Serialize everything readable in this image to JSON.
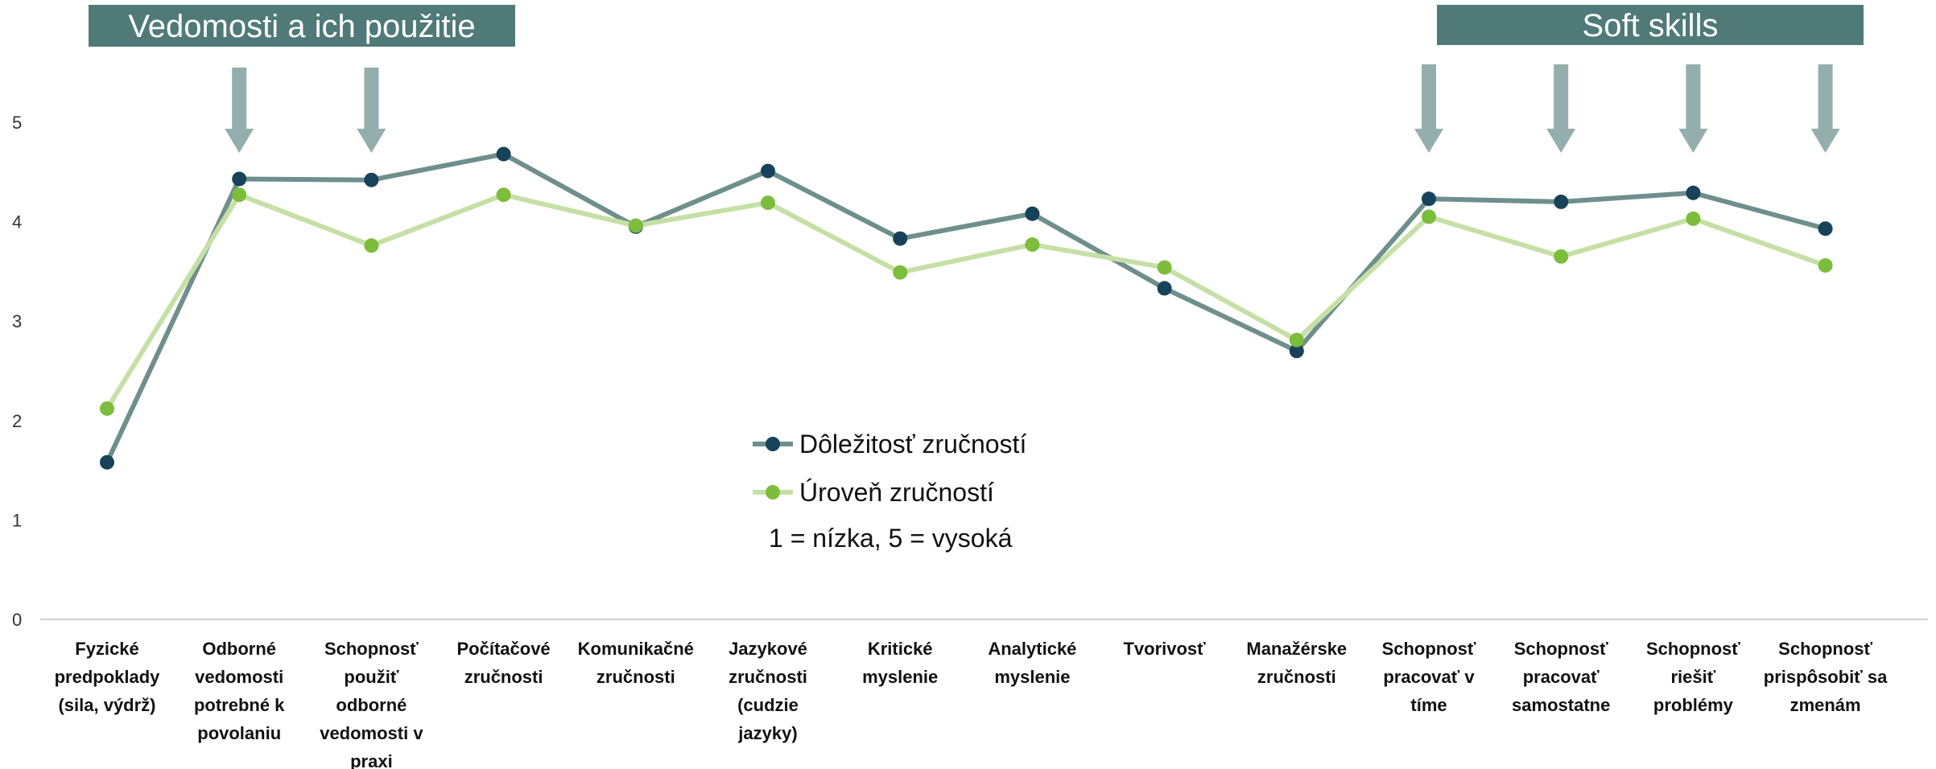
{
  "chart_data": {
    "type": "line",
    "title": "",
    "xlabel": "",
    "ylabel": "",
    "ylim": [
      0,
      5
    ],
    "yticks": [
      "0",
      "1",
      "2",
      "3",
      "4",
      "5"
    ],
    "grid": false,
    "legend_position": "center",
    "categories": [
      [
        "Fyzické",
        "predpoklady",
        "(sila, výdrž)"
      ],
      [
        "Odborné",
        "vedomosti",
        "potrebné k",
        "povolaniu"
      ],
      [
        "Schopnosť",
        "použiť",
        "odborné",
        "vedomosti v",
        "praxi"
      ],
      [
        "Počítačové",
        "zručnosti"
      ],
      [
        "Komunikačné",
        "zručnosti"
      ],
      [
        "Jazykové",
        "zručnosti",
        "(cudzie",
        "jazyky)"
      ],
      [
        "Kritické",
        "myslenie"
      ],
      [
        "Analytické",
        "myslenie"
      ],
      [
        "Tvorivosť"
      ],
      [
        "Manažérske",
        "zručnosti"
      ],
      [
        "Schopnosť",
        "pracovať v",
        "tíme"
      ],
      [
        "Schopnosť",
        "pracovať",
        "samostatne"
      ],
      [
        "Schopnosť",
        "riešiť",
        "problémy"
      ],
      [
        "Schopnosť",
        "prispôsobiť sa",
        "zmenám"
      ]
    ],
    "series": [
      {
        "name": "Dôležitosť zručností",
        "line_color": "#6f8f8d",
        "marker_color": "#17425a",
        "values": [
          1.58,
          4.43,
          4.42,
          4.68,
          3.95,
          4.51,
          3.83,
          4.08,
          3.33,
          2.7,
          4.23,
          4.2,
          4.29,
          3.93
        ]
      },
      {
        "name": "Úroveň zručností",
        "line_color": "#c5e0a5",
        "marker_color": "#7cbd3c",
        "values": [
          2.12,
          4.27,
          3.76,
          4.27,
          3.96,
          4.19,
          3.49,
          3.77,
          3.54,
          2.81,
          4.05,
          3.65,
          4.03,
          3.56
        ]
      }
    ],
    "annotations": {
      "scale_note": "1 = nízka, 5 = vysoká",
      "groups": [
        {
          "label": "Vedomosti a ich použitie",
          "arrow_category_indices": [
            1,
            2
          ]
        },
        {
          "label": "Soft skills",
          "arrow_category_indices": [
            10,
            11,
            12,
            13
          ]
        }
      ]
    }
  }
}
